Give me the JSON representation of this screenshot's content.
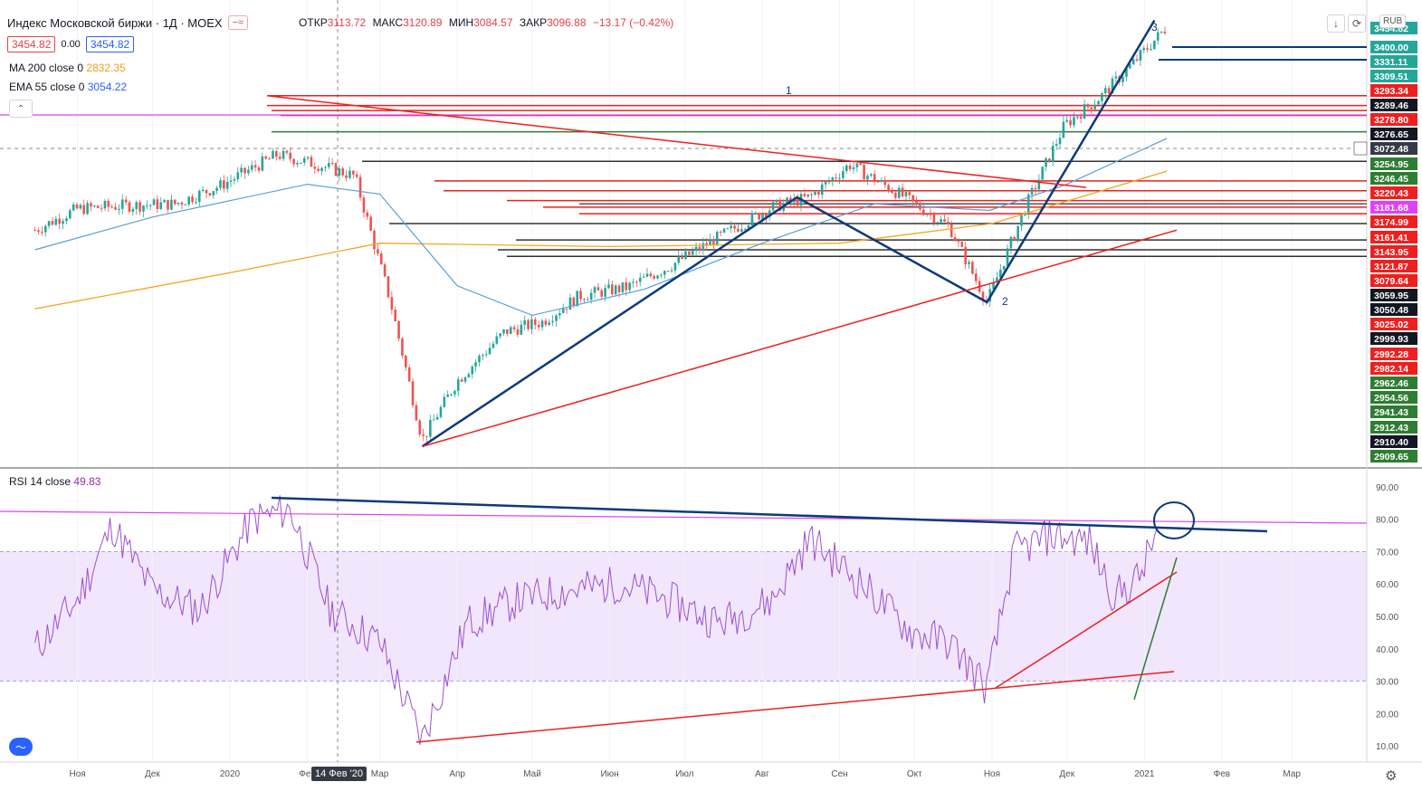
{
  "header": {
    "symbol": "Индекс Московской биржи · 1Д · MOEX",
    "open_label": "ОТКР",
    "open": "3113.72",
    "high_label": "МАКС",
    "high": "3120.89",
    "low_label": "МИН",
    "low": "3084.57",
    "close_label": "ЗАКР",
    "close": "3096.88",
    "change": "−13.17 (−0.42%)",
    "bid": "3454.82",
    "spread": "0.00",
    "ask": "3454.82",
    "currency": "RUB"
  },
  "indicators": {
    "ma_label": "MA 200 close 0",
    "ma_value": "2832.35",
    "ema_label": "EMA 55 close 0",
    "ema_value": "3054.22",
    "rsi_label": "RSI 14 close",
    "rsi_value": "49.83"
  },
  "crosshair_date": "14 Фев '20",
  "wave_labels": [
    "1",
    "2",
    "3"
  ],
  "colors": {
    "up": "#26a69a",
    "down": "#ef5350",
    "support": "#ef1f1f",
    "resistance_green": "#2e7d32",
    "trend_blue": "#0d3a7a",
    "rsi": "#9c4fd1",
    "ma200": "#f5a623",
    "ema55": "#5a9fd8",
    "magenta": "#e040fb"
  },
  "chart_data": [
    {
      "type": "line",
      "title": "",
      "price_axis_labels": [
        "3454.82",
        "3400.00",
        "3331.11",
        "3309.51",
        "3293.34",
        "3289.46",
        "3278.80",
        "3276.65",
        "3072.48",
        "3254.95",
        "3246.45",
        "3220.43",
        "3181.68",
        "3174.99",
        "3161.41",
        "3143.95",
        "3121.87",
        "3079.64",
        "3059.95",
        "3050.48",
        "3025.02",
        "2999.93",
        "2992.28",
        "2982.14",
        "2962.46",
        "2954.56",
        "2941.43",
        "2912.43",
        "2910.40",
        "2909.65"
      ],
      "x_tick_labels": [
        "Ноя",
        "Дек",
        "2020",
        "Фев",
        "Мар",
        "Апр",
        "Май",
        "Июн",
        "Июл",
        "Авг",
        "Сен",
        "Окт",
        "Ноя",
        "Дек",
        "2021",
        "Фев",
        "Мар"
      ],
      "series": [
        {
          "name": "Индекс Московской биржи",
          "x": [
            "2019-10-15",
            "2019-11-01",
            "2019-11-20",
            "2019-12-10",
            "2019-12-28",
            "2020-01-20",
            "2020-02-05",
            "2020-02-20",
            "2020-03-05",
            "2020-03-18",
            "2020-04-01",
            "2020-04-20",
            "2020-05-05",
            "2020-05-20",
            "2020-06-08",
            "2020-06-25",
            "2020-07-15",
            "2020-08-05",
            "2020-08-20",
            "2020-09-05",
            "2020-09-25",
            "2020-10-15",
            "2020-10-30",
            "2020-11-15",
            "2020-11-30",
            "2020-12-15",
            "2020-12-30",
            "2021-01-10"
          ],
          "values": [
            2920,
            2985,
            2995,
            3000,
            3055,
            3150,
            3120,
            3085,
            2710,
            2280,
            2460,
            2610,
            2640,
            2720,
            2745,
            2810,
            2900,
            2990,
            3020,
            3120,
            3030,
            2930,
            2700,
            3000,
            3240,
            3330,
            3450,
            3540
          ]
        },
        {
          "name": "MA 200",
          "x": [
            "2019-10-15",
            "2020-01-01",
            "2020-03-01",
            "2020-06-01",
            "2020-09-01",
            "2020-11-01",
            "2021-01-10"
          ],
          "values": [
            2680,
            2790,
            2880,
            2870,
            2880,
            2940,
            3100
          ]
        },
        {
          "name": "EMA 55",
          "x": [
            "2019-10-15",
            "2019-12-01",
            "2020-02-01",
            "2020-03-01",
            "2020-04-01",
            "2020-05-01",
            "2020-06-15",
            "2020-08-01",
            "2020-09-15",
            "2020-10-31",
            "2020-12-01",
            "2021-01-10"
          ],
          "values": [
            2860,
            2960,
            3060,
            3030,
            2750,
            2660,
            2740,
            2880,
            3000,
            2980,
            3060,
            3200
          ]
        }
      ],
      "wave_points": [
        {
          "label": "",
          "x": "2020-03-18",
          "y": 2260
        },
        {
          "label": "1",
          "x": "2020-08-15",
          "y": 3020
        },
        {
          "label": "2",
          "x": "2020-10-30",
          "y": 2700
        },
        {
          "label": "3",
          "x": "2021-01-05",
          "y": 3560
        }
      ]
    },
    {
      "type": "line",
      "title": "RSI 14 close",
      "ylim": [
        5,
        95
      ],
      "y_tick_labels": [
        "90.00",
        "80.00",
        "70.00",
        "60.00",
        "50.00",
        "40.00",
        "30.00",
        "20.00",
        "10.00"
      ],
      "bands": [
        30,
        70
      ],
      "series": [
        {
          "name": "RSI 14",
          "x": [
            "2019-10-15",
            "2019-11-01",
            "2019-11-15",
            "2019-12-01",
            "2019-12-20",
            "2020-01-10",
            "2020-01-25",
            "2020-02-10",
            "2020-03-01",
            "2020-03-18",
            "2020-04-05",
            "2020-04-25",
            "2020-05-15",
            "2020-06-05",
            "2020-06-25",
            "2020-07-15",
            "2020-08-05",
            "2020-08-20",
            "2020-09-10",
            "2020-09-30",
            "2020-10-15",
            "2020-10-30",
            "2020-11-10",
            "2020-11-25",
            "2020-12-10",
            "2020-12-20",
            "2020-12-30",
            "2021-01-06"
          ],
          "values": [
            40,
            55,
            78,
            58,
            52,
            80,
            83,
            52,
            42,
            12,
            48,
            55,
            58,
            60,
            55,
            48,
            55,
            74,
            60,
            45,
            42,
            28,
            70,
            75,
            73,
            56,
            62,
            76
          ]
        }
      ]
    }
  ]
}
